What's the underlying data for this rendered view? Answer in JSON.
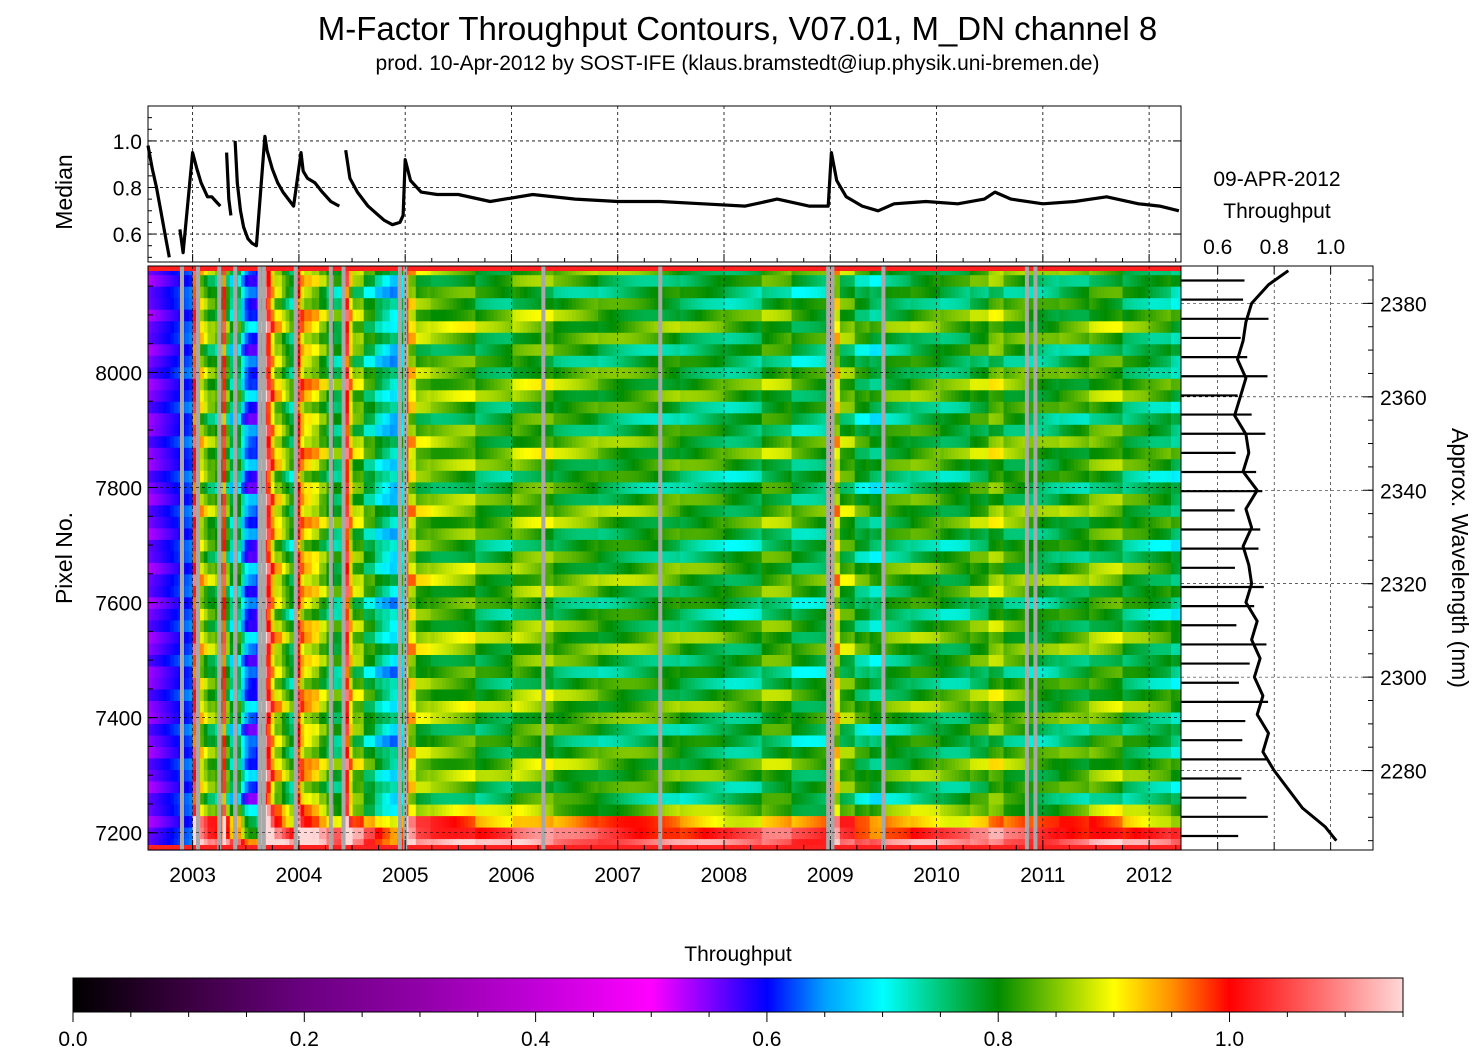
{
  "title": "M-Factor Throughput Contours, V07.01, M_DN channel 8",
  "subtitle": "prod. 10-Apr-2012 by SOST-IFE (klaus.bramstedt@iup.physik.uni-bremen.de)",
  "chart_data": [
    {
      "type": "line",
      "panel": "median-timeseries",
      "ylabel": "Median",
      "xlim": [
        2002.58,
        2012.3
      ],
      "ylim": [
        0.48,
        1.15
      ],
      "yticks": [
        "0.6",
        "0.8",
        "1.0"
      ],
      "grid": true,
      "series": [
        {
          "x": [
            2002.58,
            2002.62,
            2002.66,
            2002.7,
            2002.74,
            2002.78,
            2002.85,
            2002.88,
            2002.91,
            2003.0,
            2003.04,
            2003.08,
            2003.11,
            2003.14,
            2003.18,
            2003.22,
            2003.26,
            2003.28,
            2003.32,
            2003.34,
            2003.36,
            2003.38,
            2003.4,
            2003.42,
            2003.45,
            2003.48,
            2003.52,
            2003.56,
            2003.6,
            2003.68,
            2003.7,
            2003.75,
            2003.8,
            2003.85,
            2003.9,
            2003.95,
            2004.02,
            2004.04,
            2004.08,
            2004.15,
            2004.22,
            2004.3,
            2004.38,
            2004.42,
            2004.44,
            2004.48,
            2004.55,
            2004.65,
            2004.75,
            2004.8,
            2004.88,
            2004.95,
            2004.98,
            2005.0,
            2005.05,
            2005.15,
            2005.3,
            2005.5,
            2005.8,
            2006.2,
            2006.6,
            2007.0,
            2007.4,
            2007.8,
            2008.2,
            2008.5,
            2008.8,
            2008.98,
            2009.01,
            2009.06,
            2009.15,
            2009.3,
            2009.45,
            2009.6,
            2009.9,
            2010.2,
            2010.45,
            2010.55,
            2010.7,
            2011.0,
            2011.3,
            2011.6,
            2011.9,
            2012.1,
            2012.28
          ],
          "y": [
            0.98,
            0.88,
            0.8,
            0.7,
            0.6,
            0.5,
            null,
            0.62,
            0.52,
            0.95,
            0.88,
            0.82,
            0.79,
            0.76,
            0.76,
            0.74,
            0.72,
            null,
            0.95,
            0.75,
            0.68,
            null,
            1.0,
            0.82,
            0.7,
            0.63,
            0.58,
            0.56,
            0.55,
            1.02,
            0.96,
            0.88,
            0.82,
            0.78,
            0.75,
            0.72,
            0.95,
            0.87,
            0.84,
            0.82,
            0.78,
            0.74,
            0.72,
            null,
            0.96,
            0.84,
            0.78,
            0.72,
            0.68,
            0.66,
            0.64,
            0.65,
            0.68,
            0.92,
            0.83,
            0.78,
            0.77,
            0.77,
            0.74,
            0.77,
            0.75,
            0.74,
            0.74,
            0.73,
            0.72,
            0.75,
            0.72,
            0.72,
            0.95,
            0.83,
            0.76,
            0.72,
            0.7,
            0.73,
            0.74,
            0.73,
            0.75,
            0.78,
            0.75,
            0.73,
            0.74,
            0.76,
            0.73,
            0.72,
            0.7
          ]
        }
      ]
    },
    {
      "type": "heatmap",
      "panel": "throughput-contours",
      "ylabel": "Pixel No.",
      "xlim": [
        2002.58,
        2012.3
      ],
      "ylim": [
        7170,
        8185
      ],
      "xticks": [
        "2003",
        "2004",
        "2005",
        "2006",
        "2007",
        "2008",
        "2009",
        "2010",
        "2011",
        "2012"
      ],
      "yticks": [
        "7200",
        "7400",
        "7600",
        "7800",
        "8000"
      ],
      "grid": true,
      "data_gap_years": [
        2002.9,
        2003.05,
        2003.25,
        2003.4,
        2003.63,
        2003.67,
        2003.97,
        2004.3,
        2004.42,
        2004.95,
        2005.0,
        2006.3,
        2007.4,
        2008.98,
        2009.02,
        2009.5,
        2010.85,
        2010.93
      ]
    },
    {
      "type": "line",
      "panel": "throughput-spectrum",
      "title": "09-APR-2012\nThroughput",
      "xlim": [
        0.47,
        1.15
      ],
      "xticks": [
        "0.6",
        "0.8",
        "1.0"
      ],
      "y2label": "Approx. Wavelength (nm)",
      "y2lim": [
        2263,
        2388
      ],
      "y2ticks": [
        "2280",
        "2300",
        "2320",
        "2340",
        "2360",
        "2380"
      ],
      "grid": true,
      "series": [
        {
          "wavelength": [
            2265,
            2268,
            2272,
            2276,
            2280,
            2284,
            2288,
            2292,
            2296,
            2300,
            2304,
            2308,
            2312,
            2316,
            2320,
            2324,
            2328,
            2332,
            2336,
            2340,
            2344,
            2348,
            2352,
            2356,
            2360,
            2364,
            2368,
            2372,
            2376,
            2380,
            2384,
            2387
          ],
          "throughput": [
            1.02,
            0.98,
            0.9,
            0.85,
            0.8,
            0.76,
            0.78,
            0.74,
            0.76,
            0.73,
            0.75,
            0.72,
            0.74,
            0.7,
            0.72,
            0.71,
            0.69,
            0.72,
            0.7,
            0.74,
            0.69,
            0.71,
            0.7,
            0.66,
            0.68,
            0.7,
            0.67,
            0.69,
            0.7,
            0.72,
            0.78,
            0.85
          ]
        }
      ]
    },
    {
      "type": "colorbar",
      "title": "Throughput",
      "range": [
        0.0,
        1.15
      ],
      "ticks": [
        "0.0",
        "0.2",
        "0.4",
        "0.6",
        "0.8",
        "1.0"
      ],
      "colormap": [
        [
          0.0,
          "#000000"
        ],
        [
          0.1,
          "#3a0040"
        ],
        [
          0.2,
          "#6a0080"
        ],
        [
          0.3,
          "#9000a8"
        ],
        [
          0.4,
          "#c000d8"
        ],
        [
          0.5,
          "#ff00ff"
        ],
        [
          0.6,
          "#0000ff"
        ],
        [
          0.65,
          "#00a0ff"
        ],
        [
          0.7,
          "#00ffff"
        ],
        [
          0.75,
          "#00c878"
        ],
        [
          0.8,
          "#008c00"
        ],
        [
          0.86,
          "#9ad200"
        ],
        [
          0.9,
          "#ffff00"
        ],
        [
          0.95,
          "#ff9000"
        ],
        [
          1.0,
          "#ff0000"
        ],
        [
          1.08,
          "#ff7070"
        ],
        [
          1.15,
          "#ffd8d8"
        ]
      ]
    }
  ]
}
